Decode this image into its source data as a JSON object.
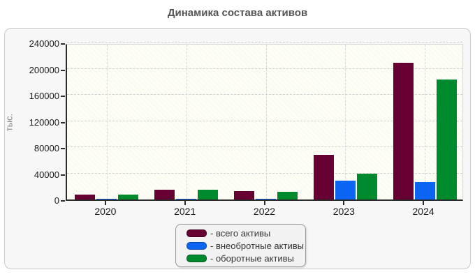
{
  "page": {
    "title": "Динамика состава активов"
  },
  "axes": {
    "y_title": "тыс.",
    "y_tick_labels": [
      "0",
      "40000",
      "80000",
      "120000",
      "160000",
      "200000",
      "240000"
    ],
    "x_tick_labels": [
      "2020",
      "2021",
      "2022",
      "2023",
      "2024"
    ]
  },
  "legend": {
    "items": [
      {
        "label": "- всего активы",
        "color": "#670033",
        "border": "#40001f"
      },
      {
        "label": "- внеобротные активы",
        "color": "#0b64f2",
        "border": "#0747b0"
      },
      {
        "label": "- оборотные активы",
        "color": "#008a2e",
        "border": "#00591e"
      }
    ]
  },
  "chart_data": {
    "type": "bar",
    "title": "Динамика состава активов",
    "xlabel": "",
    "ylabel": "тыс.",
    "categories": [
      "2020",
      "2021",
      "2022",
      "2023",
      "2024"
    ],
    "series": [
      {
        "name": "всего активы",
        "color": "#670033",
        "values": [
          7500,
          15000,
          12500,
          68000,
          209000
        ]
      },
      {
        "name": "внеобротные активы",
        "color": "#0b64f2",
        "values": [
          1200,
          1500,
          1200,
          29000,
          26500
        ]
      },
      {
        "name": "оборотные активы",
        "color": "#008a2e",
        "values": [
          7000,
          15000,
          12000,
          39500,
          183000
        ]
      }
    ],
    "ylim": [
      0,
      240000
    ],
    "ytick_step": 40000,
    "grid": true,
    "legend_position": "bottom-center"
  }
}
